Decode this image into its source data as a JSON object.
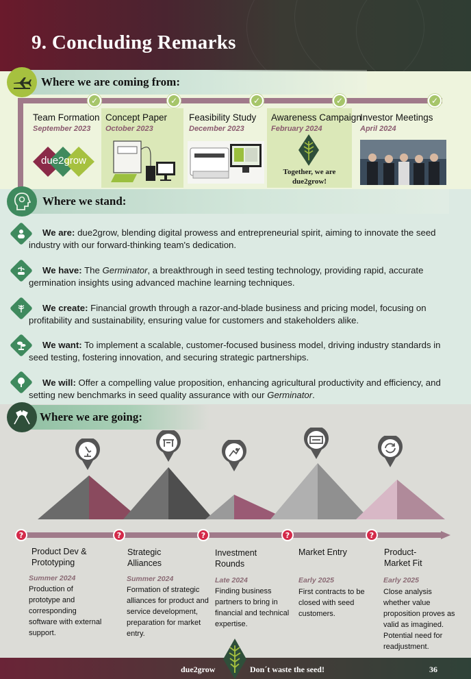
{
  "page": {
    "title": "9. Concluding Remarks",
    "page_number": "36"
  },
  "sections": {
    "coming_from": "Where we are coming from:",
    "stand": "Where we stand:",
    "going": "Where we are going:"
  },
  "milestones": [
    {
      "title": "Team Formation",
      "date": "September 2023"
    },
    {
      "title": "Concept Paper",
      "date": "October 2023"
    },
    {
      "title": "Feasibility Study",
      "date": "December 2023"
    },
    {
      "title": "Awareness Campaign",
      "date": "February 2024",
      "caption": "Together, we are due2grow!"
    },
    {
      "title": "Investor Meetings",
      "date": "April 2024"
    }
  ],
  "logo_text": "due2grow",
  "stand_items": [
    {
      "lead": "We are:",
      "text": "due2grow, blending digital prowess and entrepreneurial spirit, aiming to innovate the seed industry with our forward-thinking team's dedication."
    },
    {
      "lead": "We have:",
      "text_before": "The ",
      "em": "Germinator",
      "text_after": ", a breakthrough in seed testing technology, providing rapid, accurate germination insights using advanced machine learning techniques."
    },
    {
      "lead": "We create:",
      "text": "Financial growth through a razor-and-blade business and pricing model, focusing on profitability and sustainability, ensuring value for customers and stakeholders alike."
    },
    {
      "lead": "We want:",
      "text": "To implement a scalable, customer-focused business model, driving industry standards in seed testing, fostering innovation, and securing strategic partnerships."
    },
    {
      "lead": "We will:",
      "text_before": "Offer a compelling value proposition, enhancing agricultural productivity and efficiency, and setting new benchmarks in seed quality assurance with our ",
      "em": "Germinator",
      "text_after": "."
    }
  ],
  "going_items": [
    {
      "title": "Product Dev & Prototyping",
      "date": "Summer 2024",
      "desc": "Production of prototype and corresponding software with external support."
    },
    {
      "title": "Strategic Alliances",
      "date": "Summer 2024",
      "desc": "Formation of strategic alliances for product and service development, preparation for market entry."
    },
    {
      "title": "Investment Rounds",
      "date": "Late 2024",
      "desc": "Finding business partners to bring in financial and technical expertise."
    },
    {
      "title": "Market Entry",
      "date": "Early 2025",
      "desc": "First contracts to be closed with seed customers."
    },
    {
      "title": "Product-Market Fit",
      "date": "Early 2025",
      "desc": "Close analysis whether value proposition proves as valid as imagined. Potential need for readjustment."
    }
  ],
  "footer": {
    "brand": "due2grow",
    "slogan": "Don´t waste the seed!"
  },
  "colors": {
    "rail": "#a07a8a",
    "check": "#a6c56a",
    "question": "#d42a4a",
    "green": "#3f8a5e",
    "highlight": "#dbe8b8"
  }
}
